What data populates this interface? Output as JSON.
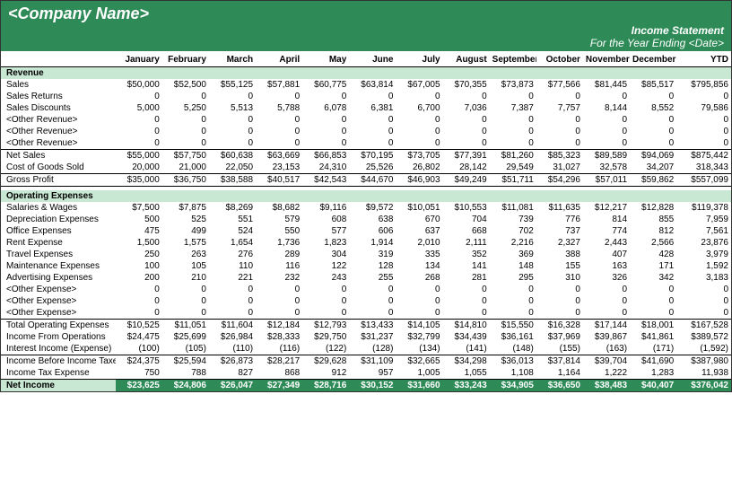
{
  "company_name": "<Company Name>",
  "statement_title": "Income Statement",
  "period_label": "For the Year Ending <Date>",
  "colors": {
    "header_bg": "#2e8b57",
    "section_bg": "#c9e8d4",
    "netincome_bg": "#2e8b57"
  },
  "months": [
    "January",
    "February",
    "March",
    "April",
    "May",
    "June",
    "July",
    "August",
    "September",
    "October",
    "November",
    "December"
  ],
  "ytd_label": "YTD",
  "sections": {
    "revenue": {
      "label": "Revenue"
    },
    "operating": {
      "label": "Operating Expenses"
    }
  },
  "rows": [
    {
      "id": "sales",
      "label": "Sales",
      "type": "revenue",
      "vals": [
        "$50,000",
        "$52,500",
        "$55,125",
        "$57,881",
        "$60,775",
        "$63,814",
        "$67,005",
        "$70,355",
        "$73,873",
        "$77,566",
        "$81,445",
        "$85,517"
      ],
      "ytd": "$795,856"
    },
    {
      "id": "sales_returns",
      "label": "Sales Returns",
      "type": "revenue",
      "vals": [
        "0",
        "0",
        "0",
        "0",
        "0",
        "0",
        "0",
        "0",
        "0",
        "0",
        "0",
        "0"
      ],
      "ytd": "0"
    },
    {
      "id": "sales_discounts",
      "label": "Sales Discounts",
      "type": "revenue",
      "vals": [
        "5,000",
        "5,250",
        "5,513",
        "5,788",
        "6,078",
        "6,381",
        "6,700",
        "7,036",
        "7,387",
        "7,757",
        "8,144",
        "8,552"
      ],
      "ytd": "79,586"
    },
    {
      "id": "other_rev1",
      "label": "<Other Revenue>",
      "type": "revenue",
      "vals": [
        "0",
        "0",
        "0",
        "0",
        "0",
        "0",
        "0",
        "0",
        "0",
        "0",
        "0",
        "0"
      ],
      "ytd": "0"
    },
    {
      "id": "other_rev2",
      "label": "<Other Revenue>",
      "type": "revenue",
      "vals": [
        "0",
        "0",
        "0",
        "0",
        "0",
        "0",
        "0",
        "0",
        "0",
        "0",
        "0",
        "0"
      ],
      "ytd": "0"
    },
    {
      "id": "other_rev3",
      "label": "<Other Revenue>",
      "type": "revenue",
      "vals": [
        "0",
        "0",
        "0",
        "0",
        "0",
        "0",
        "0",
        "0",
        "0",
        "0",
        "0",
        "0"
      ],
      "ytd": "0"
    },
    {
      "id": "net_sales",
      "label": "Net Sales",
      "type": "subtotal",
      "vals": [
        "$55,000",
        "$57,750",
        "$60,638",
        "$63,669",
        "$66,853",
        "$70,195",
        "$73,705",
        "$77,391",
        "$81,260",
        "$85,323",
        "$89,589",
        "$94,069"
      ],
      "ytd": "$875,442"
    },
    {
      "id": "cogs",
      "label": "Cost of Goods Sold",
      "type": "row",
      "vals": [
        "20,000",
        "21,000",
        "22,050",
        "23,153",
        "24,310",
        "25,526",
        "26,802",
        "28,142",
        "29,549",
        "31,027",
        "32,578",
        "34,207"
      ],
      "ytd": "318,343"
    },
    {
      "id": "gross_profit",
      "label": "Gross Profit",
      "type": "grossprofit",
      "vals": [
        "$35,000",
        "$36,750",
        "$38,588",
        "$40,517",
        "$42,543",
        "$44,670",
        "$46,903",
        "$49,249",
        "$51,711",
        "$54,296",
        "$57,011",
        "$59,862"
      ],
      "ytd": "$557,099"
    },
    {
      "id": "salaries",
      "label": "Salaries & Wages",
      "type": "expense",
      "vals": [
        "$7,500",
        "$7,875",
        "$8,269",
        "$8,682",
        "$9,116",
        "$9,572",
        "$10,051",
        "$10,553",
        "$11,081",
        "$11,635",
        "$12,217",
        "$12,828"
      ],
      "ytd": "$119,378"
    },
    {
      "id": "depreciation",
      "label": "Depreciation Expenses",
      "type": "expense",
      "vals": [
        "500",
        "525",
        "551",
        "579",
        "608",
        "638",
        "670",
        "704",
        "739",
        "776",
        "814",
        "855"
      ],
      "ytd": "7,959"
    },
    {
      "id": "office",
      "label": "Office Expenses",
      "type": "expense",
      "vals": [
        "475",
        "499",
        "524",
        "550",
        "577",
        "606",
        "637",
        "668",
        "702",
        "737",
        "774",
        "812"
      ],
      "ytd": "7,561"
    },
    {
      "id": "rent",
      "label": "Rent Expense",
      "type": "expense",
      "vals": [
        "1,500",
        "1,575",
        "1,654",
        "1,736",
        "1,823",
        "1,914",
        "2,010",
        "2,111",
        "2,216",
        "2,327",
        "2,443",
        "2,566"
      ],
      "ytd": "23,876"
    },
    {
      "id": "travel",
      "label": "Travel Expenses",
      "type": "expense",
      "vals": [
        "250",
        "263",
        "276",
        "289",
        "304",
        "319",
        "335",
        "352",
        "369",
        "388",
        "407",
        "428"
      ],
      "ytd": "3,979"
    },
    {
      "id": "maintenance",
      "label": "Maintenance Expenses",
      "type": "expense",
      "vals": [
        "100",
        "105",
        "110",
        "116",
        "122",
        "128",
        "134",
        "141",
        "148",
        "155",
        "163",
        "171"
      ],
      "ytd": "1,592"
    },
    {
      "id": "advertising",
      "label": "Advertising Expenses",
      "type": "expense",
      "vals": [
        "200",
        "210",
        "221",
        "232",
        "243",
        "255",
        "268",
        "281",
        "295",
        "310",
        "326",
        "342"
      ],
      "ytd": "3,183"
    },
    {
      "id": "other_exp1",
      "label": "<Other Expense>",
      "type": "expense",
      "vals": [
        "0",
        "0",
        "0",
        "0",
        "0",
        "0",
        "0",
        "0",
        "0",
        "0",
        "0",
        "0"
      ],
      "ytd": "0"
    },
    {
      "id": "other_exp2",
      "label": "<Other Expense>",
      "type": "expense",
      "vals": [
        "0",
        "0",
        "0",
        "0",
        "0",
        "0",
        "0",
        "0",
        "0",
        "0",
        "0",
        "0"
      ],
      "ytd": "0"
    },
    {
      "id": "other_exp3",
      "label": "<Other Expense>",
      "type": "expense",
      "vals": [
        "0",
        "0",
        "0",
        "0",
        "0",
        "0",
        "0",
        "0",
        "0",
        "0",
        "0",
        "0"
      ],
      "ytd": "0"
    },
    {
      "id": "total_opex",
      "label": "Total Operating Expenses",
      "type": "subtotal",
      "vals": [
        "$10,525",
        "$11,051",
        "$11,604",
        "$12,184",
        "$12,793",
        "$13,433",
        "$14,105",
        "$14,810",
        "$15,550",
        "$16,328",
        "$17,144",
        "$18,001"
      ],
      "ytd": "$167,528"
    },
    {
      "id": "income_ops",
      "label": "Income From Operations",
      "type": "row",
      "vals": [
        "$24,475",
        "$25,699",
        "$26,984",
        "$28,333",
        "$29,750",
        "$31,237",
        "$32,799",
        "$34,439",
        "$36,161",
        "$37,969",
        "$39,867",
        "$41,861"
      ],
      "ytd": "$389,572"
    },
    {
      "id": "interest",
      "label": "Interest Income (Expense)",
      "type": "row",
      "vals": [
        "(100)",
        "(105)",
        "(110)",
        "(116)",
        "(122)",
        "(128)",
        "(134)",
        "(141)",
        "(148)",
        "(155)",
        "(163)",
        "(171)"
      ],
      "ytd": "(1,592)"
    },
    {
      "id": "pre_tax",
      "label": "Income Before Income Taxes",
      "type": "subtotal",
      "vals": [
        "$24,375",
        "$25,594",
        "$26,873",
        "$28,217",
        "$29,628",
        "$31,109",
        "$32,665",
        "$34,298",
        "$36,013",
        "$37,814",
        "$39,704",
        "$41,690"
      ],
      "ytd": "$387,980"
    },
    {
      "id": "tax",
      "label": "Income Tax Expense",
      "type": "row",
      "vals": [
        "750",
        "788",
        "827",
        "868",
        "912",
        "957",
        "1,005",
        "1,055",
        "1,108",
        "1,164",
        "1,222",
        "1,283"
      ],
      "ytd": "11,938"
    },
    {
      "id": "net_income",
      "label": "Net Income",
      "type": "netincome",
      "vals": [
        "$23,625",
        "$24,806",
        "$26,047",
        "$27,349",
        "$28,716",
        "$30,152",
        "$31,660",
        "$33,243",
        "$34,905",
        "$36,650",
        "$38,483",
        "$40,407"
      ],
      "ytd": "$376,042"
    }
  ]
}
